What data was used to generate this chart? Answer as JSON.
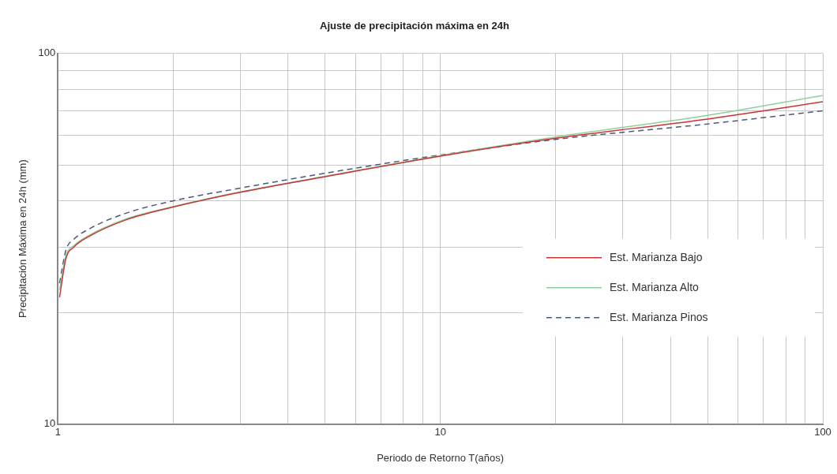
{
  "chart_data": {
    "type": "line",
    "title": "Ajuste de precipitación máxima en 24h",
    "xlabel": "Periodo de Retorno T(años)",
    "ylabel": "Precipitación Máxima en 24h (mm)",
    "log": "xy",
    "grid": true,
    "legend": "right",
    "marker": "none",
    "xlim": [
      1,
      100
    ],
    "xticks": [
      1,
      {
        "value": 2,
        "label": null
      },
      {
        "value": 3,
        "label": null
      },
      {
        "value": 4,
        "label": null
      },
      {
        "value": 5,
        "label": null
      },
      {
        "value": 6,
        "label": null
      },
      {
        "value": 7,
        "label": null
      },
      {
        "value": 8,
        "label": null
      },
      {
        "value": 9,
        "label": null
      },
      10,
      {
        "value": 20,
        "label": null
      },
      {
        "value": 30,
        "label": null
      },
      {
        "value": 40,
        "label": null
      },
      {
        "value": 50,
        "label": null
      },
      {
        "value": 60,
        "label": null
      },
      {
        "value": 70,
        "label": null
      },
      {
        "value": 80,
        "label": null
      },
      {
        "value": 90,
        "label": null
      },
      100
    ],
    "ylim": [
      10,
      100
    ],
    "yticks": [
      10,
      {
        "value": 20,
        "label": null
      },
      {
        "value": 30,
        "label": null
      },
      {
        "value": 40,
        "label": null
      },
      {
        "value": 50,
        "label": null
      },
      {
        "value": 60,
        "label": null
      },
      {
        "value": 70,
        "label": null
      },
      {
        "value": 80,
        "label": null
      },
      {
        "value": 90,
        "label": null
      },
      100
    ],
    "x": [
      1.01,
      1.05,
      1.1,
      1.2,
      1.5,
      2,
      3,
      5,
      10,
      20,
      50,
      100
    ],
    "series": [
      {
        "name": "Est. Marianza Bajo",
        "color": "#cc3333",
        "line_style": "solid",
        "values": [
          22,
          28,
          30,
          32,
          35.5,
          38.5,
          42.2,
          46.5,
          52.8,
          59,
          66.5,
          74
        ]
      },
      {
        "name": "Est. Marianza Alto",
        "color": "#8fd19e",
        "line_style": "solid",
        "values": [
          23,
          28.5,
          30.3,
          32.2,
          35.7,
          38.6,
          42.3,
          46.6,
          53,
          59.5,
          68,
          77
        ]
      },
      {
        "name": "Est. Marianza Pinos",
        "color": "#4a5a7a",
        "line_style": "dashed",
        "values": [
          24,
          29.5,
          31.5,
          33.5,
          37,
          40,
          43.3,
          47.5,
          53.2,
          58.6,
          64.5,
          70
        ]
      }
    ]
  }
}
